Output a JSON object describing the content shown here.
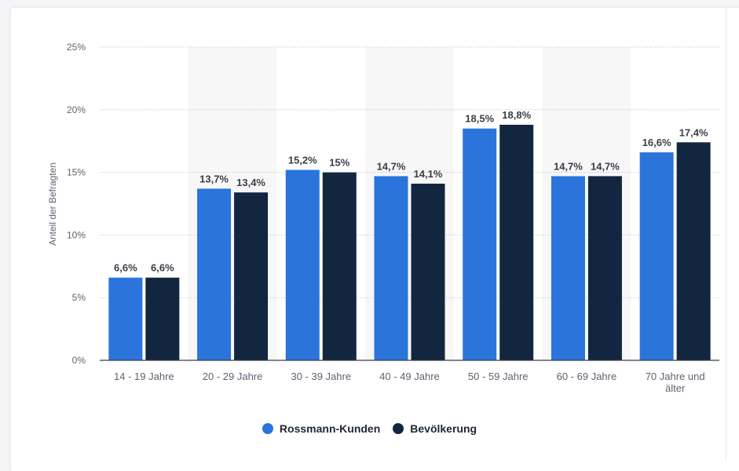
{
  "chart_data": {
    "type": "bar",
    "ylabel": "Anteil der Befragten",
    "xlabel": "",
    "ylim": [
      0,
      25
    ],
    "yticks": [
      0,
      5,
      10,
      15,
      20,
      25
    ],
    "ytick_labels": [
      "0%",
      "5%",
      "10%",
      "15%",
      "20%",
      "25%"
    ],
    "categories": [
      "14 - 19 Jahre",
      "20 - 29 Jahre",
      "30 - 39 Jahre",
      "40 - 49 Jahre",
      "50 - 59 Jahre",
      "60 - 69 Jahre",
      "70 Jahre und älter"
    ],
    "series": [
      {
        "name": "Rossmann-Kunden",
        "color": "#2a74db",
        "values": [
          6.6,
          13.7,
          15.2,
          14.7,
          18.5,
          14.7,
          16.6
        ],
        "labels": [
          "6,6%",
          "13,7%",
          "15,2%",
          "14,7%",
          "18,5%",
          "14,7%",
          "16,6%"
        ]
      },
      {
        "name": "Bevölkerung",
        "color": "#12263f",
        "values": [
          6.6,
          13.4,
          15,
          14.1,
          18.8,
          14.7,
          17.4
        ],
        "labels": [
          "6,6%",
          "13,4%",
          "15%",
          "14,1%",
          "18,8%",
          "14,7%",
          "17,4%"
        ]
      }
    ],
    "grid": true,
    "legend_position": "bottom"
  }
}
